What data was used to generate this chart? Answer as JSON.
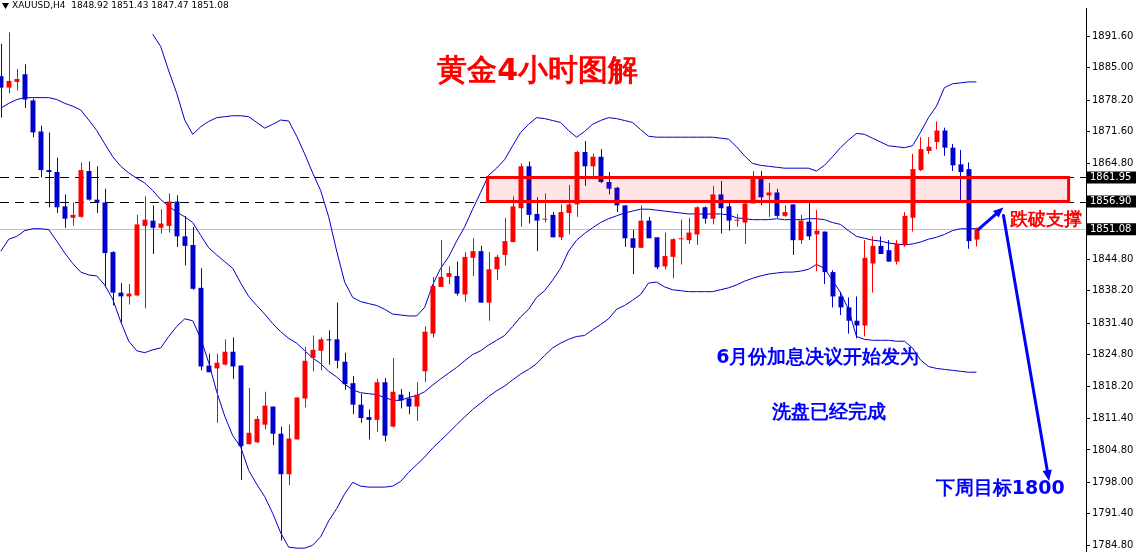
{
  "chart_data": {
    "type": "candlestick",
    "title": "黄金4小时图解",
    "subtitle": "XAUUSD,H4  1848.92 1851.43 1847.47 1851.08",
    "categories": [
      null,
      null,
      null,
      null,
      null,
      null,
      null,
      null,
      null,
      null,
      null,
      null,
      null,
      null,
      null,
      null,
      null,
      null,
      null,
      null,
      null,
      null,
      null,
      null,
      null,
      null,
      null,
      null,
      null,
      null,
      null,
      null,
      null,
      null,
      null,
      null,
      null,
      null,
      null,
      null,
      null,
      null,
      null,
      null,
      null,
      null,
      null,
      null,
      null,
      null,
      null,
      null,
      null,
      null,
      null,
      null,
      null,
      null,
      null,
      null,
      null,
      null,
      null,
      null,
      null,
      null,
      null,
      null,
      null,
      null,
      null,
      null,
      null,
      null,
      null,
      null,
      null,
      null,
      null,
      null,
      null,
      null,
      null,
      null,
      null,
      null,
      null,
      null,
      null,
      null,
      null,
      null,
      null,
      null,
      null,
      null,
      null,
      null,
      null,
      null,
      null,
      null,
      null,
      null,
      null,
      null,
      null,
      null,
      null,
      null,
      null,
      null,
      null,
      null,
      null,
      null,
      null,
      null,
      null,
      null,
      null,
      null,
      null
    ],
    "ohlc": [
      [
        1883.2,
        1890.0,
        1874.5,
        1880.8
      ],
      [
        1880.8,
        1892.4,
        1879.6,
        1882.2
      ],
      [
        1882.0,
        1884.7,
        1880.2,
        1882.6
      ],
      [
        1883.6,
        1885.7,
        1876.5,
        1878.3
      ],
      [
        1878.1,
        1878.5,
        1870.4,
        1871.4
      ],
      [
        1871.6,
        1872.8,
        1862.0,
        1863.5
      ],
      [
        1863.5,
        1871.4,
        1855.7,
        1863.1
      ],
      [
        1863.1,
        1866.1,
        1854.5,
        1855.7
      ],
      [
        1855.9,
        1858.4,
        1851.4,
        1853.3
      ],
      [
        1853.5,
        1856.7,
        1851.8,
        1854.1
      ],
      [
        1853.7,
        1865.1,
        1853.5,
        1863.5
      ],
      [
        1863.3,
        1865.3,
        1857.1,
        1857.3
      ],
      [
        1857.3,
        1864.3,
        1854.5,
        1856.7
      ],
      [
        1856.7,
        1859.6,
        1839.0,
        1846.1
      ],
      [
        1846.3,
        1846.5,
        1835.1,
        1837.8
      ],
      [
        1837.8,
        1839.8,
        1831.5,
        1837.0
      ],
      [
        1837.0,
        1839.6,
        1835.3,
        1837.6
      ],
      [
        1837.2,
        1854.1,
        1837.0,
        1852.1
      ],
      [
        1851.8,
        1858.0,
        1834.5,
        1853.1
      ],
      [
        1852.9,
        1856.1,
        1845.9,
        1851.4
      ],
      [
        1851.4,
        1855.3,
        1850.2,
        1852.3
      ],
      [
        1851.8,
        1858.6,
        1850.4,
        1856.9
      ],
      [
        1856.9,
        1858.2,
        1847.4,
        1849.6
      ],
      [
        1849.6,
        1853.9,
        1843.5,
        1847.6
      ],
      [
        1847.8,
        1851.6,
        1838.4,
        1838.6
      ],
      [
        1838.8,
        1842.9,
        1821.5,
        1822.3
      ],
      [
        1822.5,
        1825.0,
        1821.1,
        1821.1
      ],
      [
        1821.9,
        1825.0,
        1810.5,
        1823.1
      ],
      [
        1822.7,
        1828.0,
        1822.5,
        1825.4
      ],
      [
        1825.4,
        1828.4,
        1819.7,
        1822.3
      ],
      [
        1822.5,
        1822.5,
        1798.5,
        1805.6
      ],
      [
        1806.0,
        1817.8,
        1806.0,
        1808.4
      ],
      [
        1806.4,
        1811.9,
        1806.2,
        1811.3
      ],
      [
        1810.1,
        1817.0,
        1809.1,
        1814.1
      ],
      [
        1813.9,
        1813.9,
        1805.8,
        1808.2
      ],
      [
        1808.2,
        1809.7,
        1785.8,
        1799.7
      ],
      [
        1799.7,
        1810.1,
        1797.4,
        1807.2
      ],
      [
        1807.0,
        1815.8,
        1807.0,
        1815.8
      ],
      [
        1815.6,
        1826.4,
        1813.7,
        1823.5
      ],
      [
        1824.1,
        1828.8,
        1821.3,
        1825.8
      ],
      [
        1825.6,
        1828.4,
        1821.5,
        1828.0
      ],
      [
        1828.0,
        1829.9,
        1822.7,
        1827.8
      ],
      [
        1828.0,
        1835.7,
        1821.9,
        1823.5
      ],
      [
        1823.3,
        1825.2,
        1817.4,
        1818.6
      ],
      [
        1818.8,
        1820.3,
        1812.3,
        1814.3
      ],
      [
        1814.3,
        1816.6,
        1810.5,
        1811.5
      ],
      [
        1811.7,
        1813.3,
        1807.0,
        1811.1
      ],
      [
        1811.1,
        1819.7,
        1808.6,
        1819.0
      ],
      [
        1819.0,
        1819.9,
        1806.6,
        1807.8
      ],
      [
        1809.7,
        1824.1,
        1809.5,
        1817.0
      ],
      [
        1816.4,
        1817.6,
        1813.5,
        1815.2
      ],
      [
        1815.6,
        1817.0,
        1812.3,
        1813.9
      ],
      [
        1813.9,
        1819.0,
        1810.9,
        1816.4
      ],
      [
        1821.3,
        1830.7,
        1819.0,
        1829.6
      ],
      [
        1829.2,
        1841.1,
        1828.4,
        1839.2
      ],
      [
        1839.0,
        1848.8,
        1839.0,
        1841.1
      ],
      [
        1841.1,
        1843.3,
        1839.6,
        1841.9
      ],
      [
        1841.3,
        1844.3,
        1837.2,
        1837.6
      ],
      [
        1837.4,
        1846.3,
        1835.9,
        1845.3
      ],
      [
        1845.1,
        1849.2,
        1841.3,
        1846.5
      ],
      [
        1846.5,
        1847.6,
        1835.7,
        1835.7
      ],
      [
        1835.7,
        1846.3,
        1831.9,
        1842.7
      ],
      [
        1842.7,
        1845.7,
        1840.4,
        1845.3
      ],
      [
        1845.7,
        1853.5,
        1843.5,
        1848.6
      ],
      [
        1848.4,
        1858.0,
        1848.4,
        1855.9
      ],
      [
        1855.5,
        1864.9,
        1851.6,
        1864.3
      ],
      [
        1864.3,
        1865.3,
        1852.3,
        1854.1
      ],
      [
        1854.3,
        1857.8,
        1846.5,
        1852.9
      ],
      [
        1853.1,
        1858.6,
        1852.5,
        1853.3
      ],
      [
        1854.1,
        1854.7,
        1849.4,
        1849.4
      ],
      [
        1849.4,
        1856.3,
        1848.8,
        1854.7
      ],
      [
        1854.5,
        1860.4,
        1850.0,
        1856.3
      ],
      [
        1856.3,
        1867.5,
        1853.7,
        1867.3
      ],
      [
        1867.3,
        1869.6,
        1860.2,
        1864.3
      ],
      [
        1864.3,
        1866.9,
        1862.2,
        1866.3
      ],
      [
        1866.3,
        1867.9,
        1860.8,
        1861.0
      ],
      [
        1861.0,
        1863.1,
        1858.4,
        1859.6
      ],
      [
        1859.8,
        1860.0,
        1854.7,
        1856.1
      ],
      [
        1856.1,
        1856.1,
        1847.4,
        1849.2
      ],
      [
        1849.2,
        1851.0,
        1841.7,
        1847.2
      ],
      [
        1847.2,
        1856.1,
        1847.2,
        1852.9
      ],
      [
        1852.9,
        1853.7,
        1849.2,
        1849.2
      ],
      [
        1849.4,
        1849.4,
        1842.7,
        1843.1
      ],
      [
        1843.3,
        1850.4,
        1842.7,
        1845.5
      ],
      [
        1845.3,
        1849.2,
        1840.8,
        1849.0
      ],
      [
        1849.0,
        1853.1,
        1843.7,
        1849.2
      ],
      [
        1848.8,
        1853.5,
        1848.0,
        1850.4
      ],
      [
        1850.0,
        1855.9,
        1847.8,
        1855.7
      ],
      [
        1855.7,
        1855.9,
        1852.3,
        1853.3
      ],
      [
        1853.3,
        1860.2,
        1852.1,
        1858.4
      ],
      [
        1858.4,
        1861.2,
        1850.2,
        1855.5
      ],
      [
        1855.9,
        1857.1,
        1850.8,
        1852.9
      ],
      [
        1852.9,
        1854.3,
        1851.6,
        1853.1
      ],
      [
        1852.5,
        1856.9,
        1848.0,
        1856.5
      ],
      [
        1856.5,
        1863.3,
        1856.5,
        1862.0
      ],
      [
        1862.0,
        1863.3,
        1856.1,
        1857.8
      ],
      [
        1858.2,
        1860.8,
        1853.7,
        1858.8
      ],
      [
        1858.8,
        1859.6,
        1853.5,
        1853.9
      ],
      [
        1853.9,
        1856.1,
        1853.7,
        1854.7
      ],
      [
        1856.3,
        1856.3,
        1845.7,
        1848.8
      ],
      [
        1848.8,
        1854.1,
        1848.0,
        1852.9
      ],
      [
        1852.7,
        1856.9,
        1848.8,
        1849.6
      ],
      [
        1850.0,
        1855.1,
        1842.3,
        1850.8
      ],
      [
        1850.6,
        1850.6,
        1839.6,
        1842.1
      ],
      [
        1842.1,
        1842.5,
        1834.7,
        1837.0
      ],
      [
        1837.0,
        1838.0,
        1833.1,
        1834.7
      ],
      [
        1834.7,
        1836.8,
        1829.2,
        1831.9
      ],
      [
        1831.9,
        1837.0,
        1828.2,
        1830.9
      ],
      [
        1830.9,
        1848.8,
        1828.6,
        1845.1
      ],
      [
        1843.9,
        1849.6,
        1837.8,
        1847.6
      ],
      [
        1847.6,
        1849.6,
        1845.9,
        1845.9
      ],
      [
        1846.7,
        1848.8,
        1844.3,
        1844.3
      ],
      [
        1844.3,
        1848.8,
        1843.7,
        1848.0
      ],
      [
        1847.8,
        1854.7,
        1847.4,
        1853.9
      ],
      [
        1853.5,
        1866.9,
        1850.6,
        1863.7
      ],
      [
        1863.5,
        1870.4,
        1863.3,
        1867.9
      ],
      [
        1867.5,
        1870.4,
        1866.9,
        1868.4
      ],
      [
        1869.4,
        1873.7,
        1867.9,
        1871.8
      ],
      [
        1871.8,
        1872.4,
        1866.5,
        1868.2
      ],
      [
        1868.2,
        1869.0,
        1863.3,
        1864.5
      ],
      [
        1864.7,
        1867.7,
        1856.9,
        1863.1
      ],
      [
        1863.7,
        1865.1,
        1847.0,
        1848.6
      ],
      [
        1848.92,
        1851.43,
        1847.47,
        1851.08
      ]
    ],
    "colors": [
      "#0000cc",
      "#ff0000",
      "#ff0000",
      "#0000cc",
      "#0000cc",
      "#0000cc",
      "#0000cc",
      "#0000cc",
      "#0000cc",
      "#ff0000",
      "#ff0000",
      "#0000cc",
      "#0000cc",
      "#0000cc",
      "#0000cc",
      "#0000cc",
      "#ff0000",
      "#ff0000",
      "#ff0000",
      "#0000cc",
      "#ff0000",
      "#ff0000",
      "#0000cc",
      "#0000cc",
      "#0000cc",
      "#0000cc",
      "#0000cc",
      "#ff0000",
      "#ff0000",
      "#0000cc",
      "#0000cc",
      "#ff0000",
      "#ff0000",
      "#ff0000",
      "#0000cc",
      "#0000cc",
      "#ff0000",
      "#ff0000",
      "#ff0000",
      "#ff0000",
      "#ff0000",
      "#0000cc",
      "#0000cc",
      "#0000cc",
      "#0000cc",
      "#0000cc",
      "#0000cc",
      "#ff0000",
      "#0000cc",
      "#ff0000",
      "#0000cc",
      "#0000cc",
      "#ff0000",
      "#ff0000",
      "#ff0000",
      "#ff0000",
      "#ff0000",
      "#0000cc",
      "#ff0000",
      "#ff0000",
      "#0000cc",
      "#ff0000",
      "#ff0000",
      "#ff0000",
      "#ff0000",
      "#ff0000",
      "#0000cc",
      "#0000cc",
      "#ff0000",
      "#0000cc",
      "#ff0000",
      "#ff0000",
      "#ff0000",
      "#0000cc",
      "#ff0000",
      "#0000cc",
      "#0000cc",
      "#0000cc",
      "#0000cc",
      "#0000cc",
      "#ff0000",
      "#0000cc",
      "#0000cc",
      "#ff0000",
      "#ff0000",
      "#ff0000",
      "#ff0000",
      "#ff0000",
      "#0000cc",
      "#ff0000",
      "#0000cc",
      "#0000cc",
      "#ff0000",
      "#ff0000",
      "#ff0000",
      "#0000cc",
      "#ff0000",
      "#0000cc",
      "#ff0000",
      "#0000cc",
      "#ff0000",
      "#0000cc",
      "#ff0000",
      "#0000cc",
      "#0000cc",
      "#0000cc",
      "#0000cc",
      "#0000cc",
      "#ff0000",
      "#ff0000",
      "#0000cc",
      "#0000cc",
      "#ff0000",
      "#ff0000",
      "#ff0000",
      "#ff0000",
      "#ff0000",
      "#ff0000",
      "#0000cc",
      "#0000cc",
      "#0000cc",
      "#0000cc",
      "#ff0000"
    ],
    "series": [
      {
        "type": "line",
        "color": "#0000cc",
        "values": [
          null,
          null,
          null,
          null,
          null,
          null,
          null,
          null,
          null,
          null,
          null,
          null,
          null,
          null,
          null,
          null,
          null,
          null,
          null,
          1892.0,
          1889.4,
          1884.3,
          1879.6,
          1874.0,
          1871.0,
          1872.6,
          1873.7,
          1874.5,
          1874.7,
          1874.9,
          1874.9,
          1874.7,
          1873.5,
          1872.3,
          1873.1,
          1874.0,
          1873.8,
          1870.6,
          1866.9,
          1862.9,
          1859.2,
          1853.7,
          1846.5,
          1840.0,
          1836.8,
          1835.9,
          1835.5,
          1835.1,
          1834.3,
          1833.3,
          1833.1,
          1832.9,
          1832.9,
          1834.7,
          1839.4,
          1842.9,
          1845.3,
          1848.6,
          1851.6,
          1855.3,
          1858.8,
          1862.4,
          1863.9,
          1865.7,
          1868.6,
          1871.4,
          1873.1,
          1874.5,
          1874.3,
          1873.9,
          1873.5,
          1871.8,
          1870.4,
          1871.6,
          1873.1,
          1873.9,
          1874.5,
          1874.3,
          1873.9,
          1873.5,
          1872.0,
          1870.6,
          1870.4,
          1870.4,
          1870.4,
          1870.4,
          1870.4,
          1870.4,
          1870.4,
          1870.4,
          1870.2,
          1870.0,
          1868.4,
          1866.5,
          1864.9,
          1864.5,
          1864.3,
          1864.1,
          1863.9,
          1863.9,
          1863.9,
          1863.9,
          1863.3,
          1864.5,
          1866.3,
          1868.2,
          1869.8,
          1871.2,
          1871.0,
          1870.2,
          1869.4,
          1868.6,
          1868.4,
          1868.2,
          1868.6,
          1871.4,
          1874.5,
          1876.9,
          1880.8,
          1881.6,
          1881.8,
          1882.0,
          1882.0
        ]
      },
      {
        "type": "line",
        "color": "#0000cc",
        "values": [
          1876.5,
          1877.5,
          1878.3,
          1878.7,
          1878.7,
          1878.7,
          1878.7,
          1878.3,
          1877.5,
          1876.9,
          1876.1,
          1874.0,
          1871.8,
          1869.0,
          1866.3,
          1864.3,
          1862.9,
          1861.8,
          1860.8,
          1859.2,
          1857.3,
          1855.9,
          1854.7,
          1853.7,
          1852.5,
          1849.8,
          1847.2,
          1845.7,
          1844.3,
          1842.9,
          1839.8,
          1837.0,
          1835.1,
          1833.3,
          1831.3,
          1829.6,
          1828.2,
          1827.2,
          1825.6,
          1824.1,
          1822.9,
          1821.3,
          1820.1,
          1818.6,
          1817.4,
          1816.8,
          1816.6,
          1816.4,
          1815.8,
          1815.2,
          1815.2,
          1815.8,
          1816.2,
          1817.0,
          1818.4,
          1819.7,
          1820.9,
          1822.1,
          1823.5,
          1824.8,
          1825.6,
          1826.8,
          1827.8,
          1828.8,
          1830.7,
          1832.7,
          1834.3,
          1836.8,
          1838.2,
          1840.4,
          1842.9,
          1846.5,
          1848.8,
          1850.2,
          1851.4,
          1852.5,
          1853.3,
          1853.9,
          1854.5,
          1854.9,
          1855.3,
          1855.3,
          1855.1,
          1854.9,
          1854.7,
          1854.5,
          1854.3,
          1854.3,
          1854.3,
          1854.3,
          1854.3,
          1854.1,
          1853.5,
          1853.3,
          1853.1,
          1853.1,
          1853.1,
          1853.3,
          1853.1,
          1853.1,
          1853.1,
          1853.3,
          1853.3,
          1853.1,
          1852.5,
          1852.1,
          1850.8,
          1849.6,
          1849.2,
          1848.8,
          1848.6,
          1848.2,
          1848.0,
          1847.8,
          1848.0,
          1848.4,
          1849.0,
          1849.4,
          1850.0,
          1850.8,
          1851.2,
          1851.2,
          1851.2
        ]
      },
      {
        "type": "line",
        "color": "#0000cc",
        "values": [
          1846.5,
          1849.0,
          1849.6,
          1850.8,
          1851.2,
          1851.2,
          1851.0,
          1848.6,
          1846.1,
          1843.9,
          1842.1,
          1841.5,
          1841.3,
          1839.4,
          1836.4,
          1831.7,
          1827.6,
          1825.6,
          1825.2,
          1825.8,
          1826.2,
          1828.6,
          1830.7,
          1832.3,
          1831.9,
          1828.2,
          1823.1,
          1817.0,
          1811.9,
          1807.8,
          1805.4,
          1800.5,
          1797.6,
          1795.0,
          1791.5,
          1787.4,
          1784.4,
          1784.2,
          1784.2,
          1784.8,
          1786.6,
          1789.9,
          1792.5,
          1795.6,
          1798.0,
          1797.2,
          1797.0,
          1797.0,
          1797.0,
          1797.2,
          1798.2,
          1800.1,
          1801.7,
          1803.3,
          1805.2,
          1806.8,
          1808.4,
          1810.1,
          1811.7,
          1813.3,
          1814.6,
          1816.0,
          1817.2,
          1818.2,
          1819.5,
          1820.7,
          1821.7,
          1822.9,
          1824.6,
          1826.2,
          1827.2,
          1828.0,
          1828.6,
          1828.8,
          1830.0,
          1831.1,
          1832.3,
          1834.3,
          1835.1,
          1836.2,
          1837.4,
          1839.8,
          1840.0,
          1839.0,
          1838.4,
          1838.2,
          1838.0,
          1838.0,
          1838.0,
          1838.0,
          1838.4,
          1838.8,
          1839.4,
          1840.2,
          1840.8,
          1841.3,
          1841.7,
          1841.9,
          1842.1,
          1842.1,
          1842.3,
          1842.7,
          1843.7,
          1842.9,
          1840.4,
          1837.8,
          1834.3,
          1828.6,
          1828.0,
          1827.8,
          1827.8,
          1827.8,
          1827.6,
          1827.6,
          1826.2,
          1823.7,
          1822.3,
          1821.9,
          1821.7,
          1821.5,
          1821.3,
          1821.1,
          1821.1
        ]
      }
    ],
    "ylim": [
      1783.6,
      1897.5
    ],
    "yticks": [
      {
        "value": 1891.6,
        "label": "1891.60"
      },
      {
        "value": 1885,
        "label": "1885.00"
      },
      {
        "value": 1878.2,
        "label": "1878.20"
      },
      {
        "value": 1871.6,
        "label": "1871.60"
      },
      {
        "value": 1864.8,
        "label": "1864.80"
      },
      {
        "value": 1851.4,
        "label": null
      },
      {
        "value": 1844.8,
        "label": "1844.80"
      },
      {
        "value": 1838.2,
        "label": "1838.20"
      },
      {
        "value": 1831.4,
        "label": "1831.40"
      },
      {
        "value": 1824.8,
        "label": "1824.80"
      },
      {
        "value": 1818.2,
        "label": "1818.20"
      },
      {
        "value": 1811.4,
        "label": "1811.40"
      },
      {
        "value": 1804.8,
        "label": "1804.80"
      },
      {
        "value": 1798,
        "label": "1798.00"
      },
      {
        "value": 1791.4,
        "label": "1791.40"
      },
      {
        "value": 1784.8,
        "label": "1784.80"
      }
    ],
    "ref_lines": [
      {
        "axis": "y",
        "value": 1861.95,
        "label": "1861.95",
        "color": "#000000",
        "line_style": "dashed"
      },
      {
        "axis": "y",
        "value": 1856.9,
        "label": "1856.90",
        "color": "#000000",
        "line_style": "dashed"
      },
      {
        "axis": "y",
        "value": 1851.08,
        "label": "1851.08",
        "color": "#c0c0c0",
        "line_style": "solid"
      }
    ],
    "bands": [
      {
        "axis": "y",
        "from": 1856.9,
        "to": 1861.95,
        "label": "跌破支撑",
        "color": "#ff0000"
      }
    ],
    "annotations": [
      "6月份加息决议开始发为",
      "洗盘已经完成",
      "下周目标1800"
    ],
    "tick_labels": "y",
    "legend": false
  }
}
